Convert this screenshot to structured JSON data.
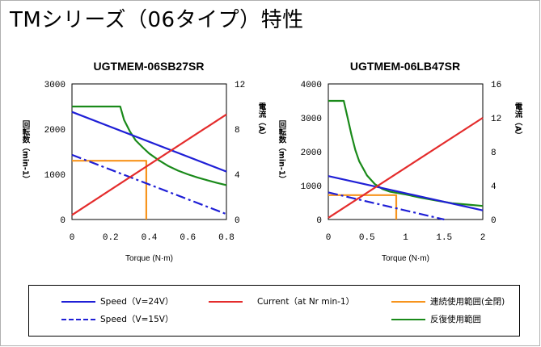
{
  "page_title": "TMシリーズ（06タイプ）特性",
  "colors": {
    "speed": "#1f1fd6",
    "current": "#e42c2c",
    "continuous": "#f7941d",
    "intermittent": "#1a8a1a"
  },
  "chart_data": [
    {
      "type": "line",
      "title": "UGTMEM-06SB27SR",
      "xlabel": "Torque (N·m)",
      "ylabel_left": "回転数（min-1）",
      "ylabel_right": "電流（A）",
      "xlim": [
        0,
        0.8
      ],
      "ylim_left": [
        0,
        3000
      ],
      "ylim_right": [
        0,
        12
      ],
      "x_ticks": [
        "0",
        "0.2",
        "0.4",
        "0.6",
        "0.8"
      ],
      "y_left_ticks": [
        "0",
        "1000",
        "2000",
        "3000"
      ],
      "y_right_ticks": [
        "0",
        "4",
        "8",
        "12"
      ],
      "series": [
        {
          "name": "Speed（V=24V）",
          "axis": "left",
          "style": "solid",
          "color_key": "speed",
          "points": [
            [
              0,
              2380
            ],
            [
              0.8,
              1060
            ]
          ]
        },
        {
          "name": "Speed（V=15V）",
          "axis": "left",
          "style": "dashdot",
          "color_key": "speed",
          "points": [
            [
              0,
              1430
            ],
            [
              0.8,
              120
            ]
          ]
        },
        {
          "name": "Current（at Nr min-1）",
          "axis": "right",
          "style": "solid",
          "color_key": "current",
          "points": [
            [
              0,
              0.4
            ],
            [
              0.8,
              9.3
            ]
          ]
        },
        {
          "name": "連続使用範囲(全閉)",
          "axis": "left",
          "style": "solid",
          "color_key": "continuous",
          "points": [
            [
              0,
              1300
            ],
            [
              0.385,
              1300
            ],
            [
              0.385,
              0
            ]
          ]
        },
        {
          "name": "反復使用範囲",
          "axis": "left",
          "style": "solid",
          "color_key": "intermittent",
          "points": [
            [
              0,
              2500
            ],
            [
              0.25,
              2500
            ],
            [
              0.27,
              2200
            ],
            [
              0.3,
              1950
            ],
            [
              0.33,
              1750
            ],
            [
              0.37,
              1580
            ],
            [
              0.4,
              1460
            ],
            [
              0.45,
              1310
            ],
            [
              0.5,
              1180
            ],
            [
              0.55,
              1080
            ],
            [
              0.6,
              1000
            ],
            [
              0.65,
              930
            ],
            [
              0.7,
              870
            ],
            [
              0.75,
              810
            ],
            [
              0.8,
              760
            ]
          ]
        }
      ]
    },
    {
      "type": "line",
      "title": "UGTMEM-06LB47SR",
      "xlabel": "Torque (N·m)",
      "ylabel_left": "回転数（min-1）",
      "ylabel_right": "電流（A）",
      "xlim": [
        0,
        2
      ],
      "ylim_left": [
        0,
        4000
      ],
      "ylim_right": [
        0,
        16
      ],
      "x_ticks": [
        "0",
        "0.5",
        "1",
        "1.5",
        "2"
      ],
      "y_left_ticks": [
        "0",
        "1000",
        "2000",
        "3000",
        "4000"
      ],
      "y_right_ticks": [
        "0",
        "4",
        "8",
        "12",
        "16"
      ],
      "series": [
        {
          "name": "Speed（V=24V）",
          "axis": "left",
          "style": "solid",
          "color_key": "speed",
          "points": [
            [
              0,
              1280
            ],
            [
              2,
              270
            ]
          ]
        },
        {
          "name": "Speed（V=15V）",
          "axis": "left",
          "style": "dashdot",
          "color_key": "speed",
          "points": [
            [
              0,
              800
            ],
            [
              1.5,
              0
            ]
          ]
        },
        {
          "name": "Current（at Nr min-1）",
          "axis": "right",
          "style": "solid",
          "color_key": "current",
          "points": [
            [
              0,
              0.2
            ],
            [
              2,
              12
            ]
          ]
        },
        {
          "name": "連続使用範囲(全閉)",
          "axis": "left",
          "style": "solid",
          "color_key": "continuous",
          "points": [
            [
              0,
              720
            ],
            [
              0.88,
              720
            ],
            [
              0.88,
              0
            ]
          ]
        },
        {
          "name": "反復使用範囲",
          "axis": "left",
          "style": "solid",
          "color_key": "intermittent",
          "points": [
            [
              0,
              3500
            ],
            [
              0.2,
              3500
            ],
            [
              0.25,
              3000
            ],
            [
              0.3,
              2500
            ],
            [
              0.35,
              2050
            ],
            [
              0.4,
              1720
            ],
            [
              0.5,
              1300
            ],
            [
              0.6,
              1050
            ],
            [
              0.7,
              900
            ],
            [
              0.8,
              820
            ],
            [
              1.0,
              740
            ],
            [
              1.2,
              640
            ],
            [
              1.4,
              560
            ],
            [
              1.6,
              480
            ],
            [
              1.8,
              440
            ],
            [
              2.0,
              400
            ]
          ]
        }
      ]
    }
  ],
  "legend": [
    {
      "label": "Speed（V=24V）",
      "color_key": "speed",
      "style": "solid"
    },
    {
      "label": "Speed（V=15V）",
      "color_key": "speed",
      "style": "dashdot"
    },
    {
      "label": "Current（at Nr min-1）",
      "color_key": "current",
      "style": "solid"
    },
    {
      "label": "連続使用範囲(全閉)",
      "color_key": "continuous",
      "style": "solid"
    },
    {
      "label": "反復使用範囲",
      "color_key": "intermittent",
      "style": "solid"
    }
  ]
}
